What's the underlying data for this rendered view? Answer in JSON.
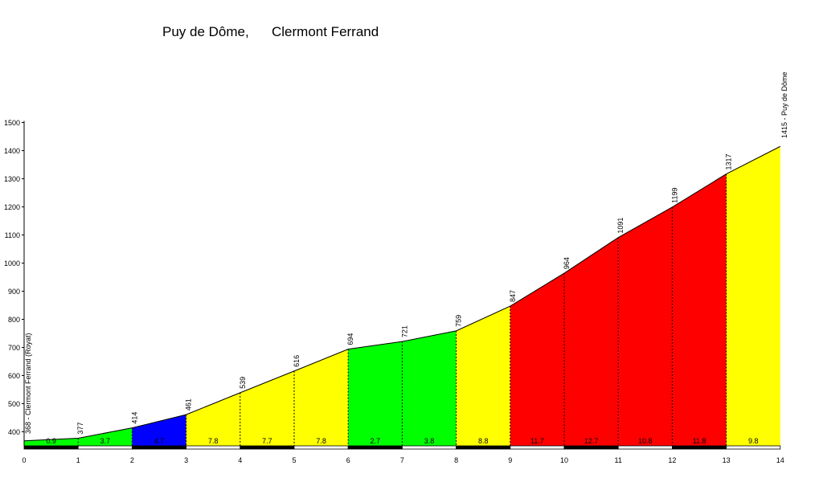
{
  "title": {
    "climb": "Puy de Dôme,",
    "start_town": "Clermont Ferrand"
  },
  "chart_data": {
    "type": "area",
    "title": "Puy de Dôme,      Clermont Ferrand",
    "x": [
      0,
      1,
      2,
      3,
      4,
      5,
      6,
      7,
      8,
      9,
      10,
      11,
      12,
      13,
      14
    ],
    "elevations": [
      368,
      377,
      414,
      461,
      539,
      616,
      694,
      721,
      759,
      847,
      964,
      1091,
      1199,
      1317,
      1415
    ],
    "point_labels": [
      "",
      "377",
      "414",
      "461",
      "539",
      "616",
      "694",
      "721",
      "759",
      "847",
      "964",
      "1091",
      "1199",
      "1317",
      ""
    ],
    "start_label": "368 - Clermont Ferrand (Royat)",
    "end_label": "1415 - Puy de Dôme",
    "gradients": [
      "0.9",
      "3.7",
      "4.7",
      "7.8",
      "7.7",
      "7.8",
      "2.7",
      "3.8",
      "8.8",
      "11.7",
      "12.7",
      "10.8",
      "11.8",
      "9.8"
    ],
    "segment_colors": [
      "#00ff00",
      "#00ff00",
      "#0000ff",
      "#ffff00",
      "#ffff00",
      "#ffff00",
      "#00ff00",
      "#00ff00",
      "#ffff00",
      "#ff0000",
      "#ff0000",
      "#ff0000",
      "#ff0000",
      "#ffff00"
    ],
    "x_ticks": [
      "0",
      "1",
      "2",
      "3",
      "4",
      "5",
      "6",
      "7",
      "8",
      "9",
      "10",
      "11",
      "12",
      "13",
      "14"
    ],
    "y_ticks": [
      "400",
      "500",
      "600",
      "700",
      "800",
      "900",
      "1000",
      "1100",
      "1200",
      "1300",
      "1400",
      "1500"
    ],
    "xlim": [
      0,
      14
    ],
    "ylim": [
      350,
      1500
    ],
    "grid": false,
    "legend": "none"
  }
}
